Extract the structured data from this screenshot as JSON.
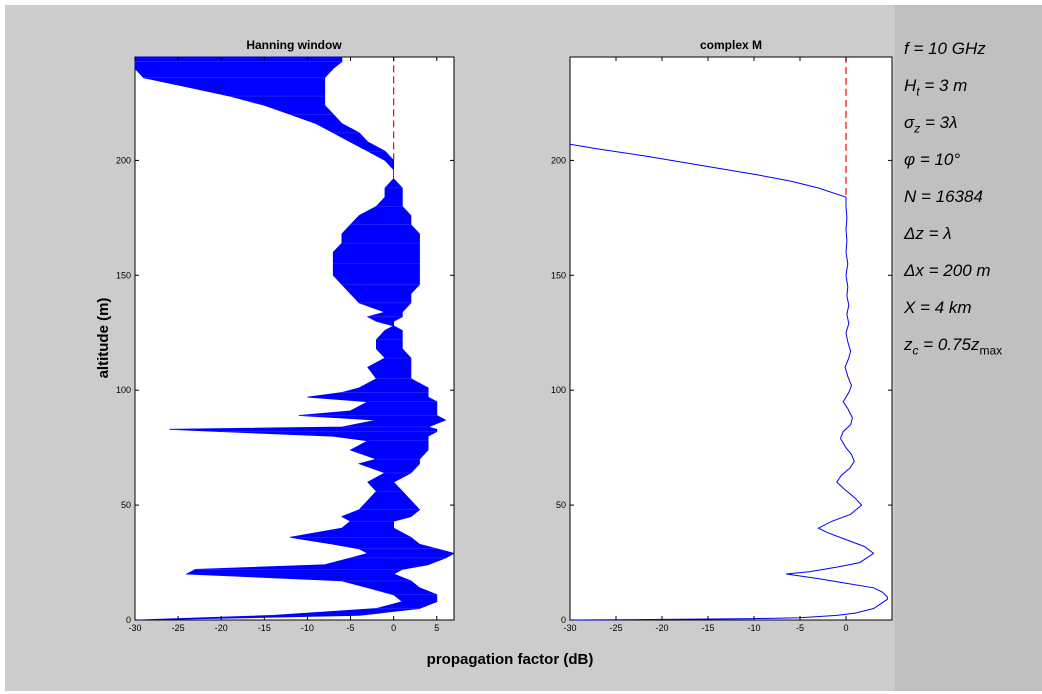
{
  "colors": {
    "figure_bg": "#cccccc",
    "side_bg": "#c0c0c0",
    "trace": "#0000ff",
    "reference": "#ff0000"
  },
  "xlabel": "propagation factor (dB)",
  "ylabel": "altitude (m)",
  "parameters": [
    {
      "pre": "f = 10 GHz",
      "sub": "",
      "post": ""
    },
    {
      "pre": "H",
      "sub": "t",
      "post": " = 3 m"
    },
    {
      "pre": "σ",
      "sub": "z",
      "post": " = 3λ"
    },
    {
      "pre": "φ = 10°",
      "sub": "",
      "post": ""
    },
    {
      "pre": "N = 16384",
      "sub": "",
      "post": ""
    },
    {
      "pre": "Δz = λ",
      "sub": "",
      "post": ""
    },
    {
      "pre": "Δx = 200 m",
      "sub": "",
      "post": ""
    },
    {
      "pre": "X = 4 km",
      "sub": "",
      "post": ""
    },
    {
      "pre": "z",
      "sub": "c",
      "post": " = 0.75z",
      "sub2": "max"
    }
  ],
  "chart_data": [
    {
      "type": "line",
      "title": "Hanning window",
      "xlim": [
        -30,
        7
      ],
      "ylim": [
        0,
        245
      ],
      "xticks": [
        -30,
        -25,
        -20,
        -15,
        -10,
        -5,
        0,
        5
      ],
      "yticks": [
        0,
        50,
        100,
        150,
        200
      ],
      "reference_line": {
        "x": 0,
        "y_from": 200,
        "y_to": 245,
        "style": "dashed",
        "color": "#ff0000"
      },
      "series": [
        {
          "style": "envelope",
          "profile": [
            [
              0,
              -30,
              -30
            ],
            [
              2,
              -14,
              -4
            ],
            [
              5,
              -2,
              3
            ],
            [
              8,
              1,
              5
            ],
            [
              11,
              0,
              5
            ],
            [
              14,
              -3,
              3
            ],
            [
              17,
              -6,
              2
            ],
            [
              20,
              -24,
              0
            ],
            [
              22,
              -23,
              1
            ],
            [
              24,
              -8,
              4
            ],
            [
              27,
              -5,
              6
            ],
            [
              29,
              -3,
              7
            ],
            [
              31,
              -4,
              5
            ],
            [
              33,
              -7,
              3
            ],
            [
              36,
              -12,
              2
            ],
            [
              40,
              -6,
              0
            ],
            [
              43,
              -5,
              0
            ],
            [
              45,
              -6,
              2
            ],
            [
              48,
              -4,
              3
            ],
            [
              52,
              -3,
              2
            ],
            [
              56,
              -2,
              1
            ],
            [
              60,
              -3,
              0
            ],
            [
              64,
              -1,
              2
            ],
            [
              68,
              -4,
              3
            ],
            [
              70,
              -2,
              3
            ],
            [
              74,
              -5,
              4
            ],
            [
              78,
              -3,
              4
            ],
            [
              80,
              -7,
              4
            ],
            [
              82,
              -20,
              5
            ],
            [
              83,
              -26,
              5
            ],
            [
              84,
              -6,
              4
            ],
            [
              87,
              -2,
              6
            ],
            [
              89,
              -11,
              5
            ],
            [
              91,
              -5,
              5
            ],
            [
              95,
              -3,
              5
            ],
            [
              97,
              -10,
              4
            ],
            [
              99,
              -6,
              4
            ],
            [
              101,
              -4,
              4
            ],
            [
              105,
              -2,
              2
            ],
            [
              110,
              -3,
              2
            ],
            [
              114,
              -1,
              2
            ],
            [
              118,
              -2,
              1
            ],
            [
              122,
              -2,
              1
            ],
            [
              126,
              -1,
              1
            ],
            [
              128,
              0,
              0
            ],
            [
              130,
              -2,
              0
            ],
            [
              132,
              -3,
              1
            ],
            [
              134,
              -1,
              1
            ],
            [
              138,
              -4,
              2
            ],
            [
              142,
              -5,
              2
            ],
            [
              146,
              -6,
              3
            ],
            [
              150,
              -7,
              3
            ],
            [
              155,
              -7,
              3
            ],
            [
              160,
              -7,
              3
            ],
            [
              164,
              -6,
              3
            ],
            [
              168,
              -6,
              3
            ],
            [
              172,
              -5,
              2
            ],
            [
              176,
              -4,
              2
            ],
            [
              180,
              -2,
              1
            ],
            [
              184,
              -1,
              1
            ],
            [
              188,
              -1,
              1
            ],
            [
              192,
              0,
              0
            ],
            [
              196,
              0,
              0
            ],
            [
              200,
              -1,
              0
            ],
            [
              204,
              -3,
              -1
            ],
            [
              208,
              -5,
              -3
            ],
            [
              212,
              -7,
              -4
            ],
            [
              216,
              -9,
              -6
            ],
            [
              220,
              -12,
              -7
            ],
            [
              224,
              -15,
              -8
            ],
            [
              228,
              -19,
              -8
            ],
            [
              232,
              -24,
              -8
            ],
            [
              236,
              -29,
              -8
            ],
            [
              240,
              -30,
              -7
            ],
            [
              243,
              -30,
              -6
            ],
            [
              245,
              -30,
              -6
            ]
          ]
        }
      ]
    },
    {
      "type": "line",
      "title": "complex M",
      "xlim": [
        -30,
        5
      ],
      "ylim": [
        0,
        245
      ],
      "xticks": [
        -30,
        -25,
        -20,
        -15,
        -10,
        -5,
        0
      ],
      "yticks": [
        0,
        50,
        100,
        150,
        200
      ],
      "reference_line": {
        "x": 0,
        "y_from": 185,
        "y_to": 245,
        "style": "dashed",
        "color": "#ff0000"
      },
      "series": [
        {
          "style": "line",
          "points": [
            [
              -30,
              0
            ],
            [
              -18,
              0.3
            ],
            [
              -10,
              0.6
            ],
            [
              -5,
              1
            ],
            [
              -1,
              2
            ],
            [
              1,
              3
            ],
            [
              3,
              5
            ],
            [
              4.5,
              9
            ],
            [
              4.5,
              10
            ],
            [
              4,
              12
            ],
            [
              3,
              14
            ],
            [
              0,
              16
            ],
            [
              -3,
              18
            ],
            [
              -6.5,
              20
            ],
            [
              -4,
              21
            ],
            [
              -1,
              23
            ],
            [
              1.5,
              25
            ],
            [
              3,
              29
            ],
            [
              2,
              32
            ],
            [
              0,
              35
            ],
            [
              -2,
              38
            ],
            [
              -3,
              40
            ],
            [
              -1.5,
              43
            ],
            [
              0.5,
              46
            ],
            [
              1.7,
              50
            ],
            [
              1,
              53
            ],
            [
              -0.2,
              57
            ],
            [
              -1,
              60
            ],
            [
              -0.5,
              63
            ],
            [
              0.4,
              66
            ],
            [
              0.9,
              69
            ],
            [
              0.6,
              72
            ],
            [
              0,
              75
            ],
            [
              -0.6,
              79
            ],
            [
              -0.3,
              82
            ],
            [
              0.5,
              85
            ],
            [
              0.7,
              88
            ],
            [
              0.2,
              92
            ],
            [
              -0.3,
              95
            ],
            [
              0.3,
              99
            ],
            [
              0.6,
              102
            ],
            [
              0.2,
              106
            ],
            [
              -0.1,
              110
            ],
            [
              0.3,
              114
            ],
            [
              0.5,
              117
            ],
            [
              0.2,
              121
            ],
            [
              0,
              125
            ],
            [
              0.3,
              129
            ],
            [
              0.1,
              133
            ],
            [
              0.3,
              137
            ],
            [
              0.1,
              141
            ],
            [
              0.2,
              145
            ],
            [
              0,
              150
            ],
            [
              0.2,
              155
            ],
            [
              0,
              160
            ],
            [
              0.1,
              165
            ],
            [
              0,
              170
            ],
            [
              0.1,
              175
            ],
            [
              0,
              180
            ],
            [
              0,
              184
            ],
            [
              -3,
              188
            ],
            [
              -6,
              191
            ],
            [
              -10,
              194
            ],
            [
              -16,
              198
            ],
            [
              -22,
              202
            ],
            [
              -27,
              205
            ],
            [
              -30,
              207
            ]
          ]
        }
      ]
    }
  ]
}
